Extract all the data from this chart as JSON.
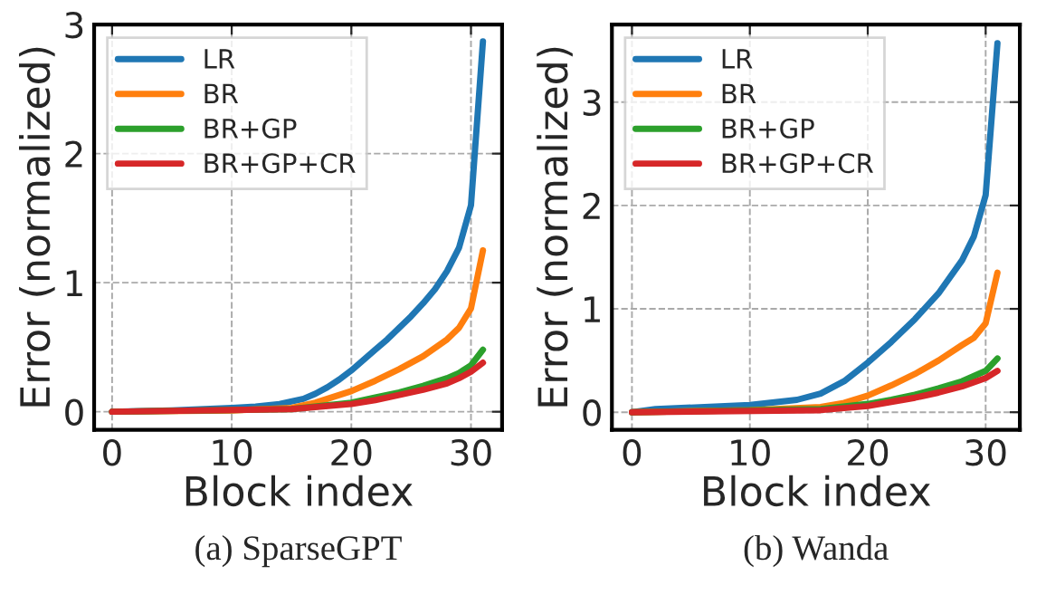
{
  "chart_data": [
    {
      "type": "line",
      "xlabel": "Block index",
      "ylabel": "Error (normalized)",
      "annotations": [
        "(a) SparseGPT"
      ],
      "xlim": [
        -1.5,
        32.6
      ],
      "ylim": [
        -0.14,
        3.0
      ],
      "xticks": [
        0,
        10,
        20,
        30
      ],
      "yticks": [
        0,
        1,
        2,
        3
      ],
      "grid": true,
      "legend": "top left",
      "line_style": "solid",
      "marker": "none",
      "series": [
        {
          "name": "LR",
          "color": "#1f77b4",
          "x": [
            0,
            5,
            10,
            12,
            14,
            16,
            17,
            18,
            19,
            20,
            21,
            22,
            23,
            24,
            25,
            26,
            27,
            28,
            29,
            30,
            31
          ],
          "values": [
            0,
            0.01,
            0.03,
            0.04,
            0.06,
            0.1,
            0.14,
            0.19,
            0.25,
            0.32,
            0.4,
            0.48,
            0.56,
            0.65,
            0.74,
            0.84,
            0.95,
            1.09,
            1.27,
            1.6,
            2.87
          ]
        },
        {
          "name": "BR",
          "color": "#ff7f0e",
          "x": [
            0,
            10,
            15,
            17,
            18,
            20,
            22,
            24,
            26,
            28,
            29,
            30,
            31
          ],
          "values": [
            0,
            0.01,
            0.03,
            0.07,
            0.1,
            0.16,
            0.24,
            0.33,
            0.43,
            0.56,
            0.65,
            0.8,
            1.25
          ]
        },
        {
          "name": "BR+GP",
          "color": "#2ca02c",
          "x": [
            0,
            15,
            20,
            22,
            24,
            26,
            28,
            29,
            30,
            31
          ],
          "values": [
            0,
            0.02,
            0.07,
            0.11,
            0.15,
            0.2,
            0.26,
            0.3,
            0.36,
            0.48
          ]
        },
        {
          "name": "BR+GP+CR",
          "color": "#d62728",
          "x": [
            0,
            15,
            20,
            22,
            24,
            26,
            28,
            29,
            30,
            31
          ],
          "values": [
            0,
            0.02,
            0.06,
            0.09,
            0.13,
            0.17,
            0.22,
            0.26,
            0.31,
            0.38
          ]
        }
      ]
    },
    {
      "type": "line",
      "xlabel": "Block index",
      "ylabel": "Error (normalized)",
      "annotations": [
        "(b) Wanda"
      ],
      "xlim": [
        -1.7,
        32.9
      ],
      "ylim": [
        -0.17,
        3.75
      ],
      "xticks": [
        0,
        10,
        20,
        30
      ],
      "yticks": [
        0,
        1,
        2,
        3
      ],
      "grid": true,
      "legend": "top left",
      "line_style": "solid",
      "marker": "none",
      "series": [
        {
          "name": "LR",
          "color": "#1f77b4",
          "x": [
            0,
            2,
            10,
            14,
            16,
            18,
            20,
            22,
            24,
            26,
            28,
            29,
            30,
            31
          ],
          "values": [
            0,
            0.03,
            0.07,
            0.12,
            0.18,
            0.3,
            0.48,
            0.68,
            0.9,
            1.15,
            1.47,
            1.7,
            2.1,
            3.57
          ]
        },
        {
          "name": "BR",
          "color": "#ff7f0e",
          "x": [
            0,
            10,
            16,
            18,
            20,
            22,
            24,
            26,
            28,
            29,
            30,
            31
          ],
          "values": [
            0,
            0.02,
            0.05,
            0.09,
            0.16,
            0.26,
            0.37,
            0.5,
            0.65,
            0.72,
            0.86,
            1.35
          ]
        },
        {
          "name": "BR+GP",
          "color": "#2ca02c",
          "x": [
            0,
            16,
            20,
            22,
            24,
            26,
            28,
            30,
            31
          ],
          "values": [
            0,
            0.03,
            0.08,
            0.12,
            0.17,
            0.23,
            0.3,
            0.4,
            0.52
          ]
        },
        {
          "name": "BR+GP+CR",
          "color": "#d62728",
          "x": [
            0,
            16,
            20,
            22,
            24,
            26,
            28,
            30,
            31
          ],
          "values": [
            0,
            0.02,
            0.06,
            0.1,
            0.14,
            0.19,
            0.25,
            0.33,
            0.4
          ]
        }
      ]
    }
  ]
}
